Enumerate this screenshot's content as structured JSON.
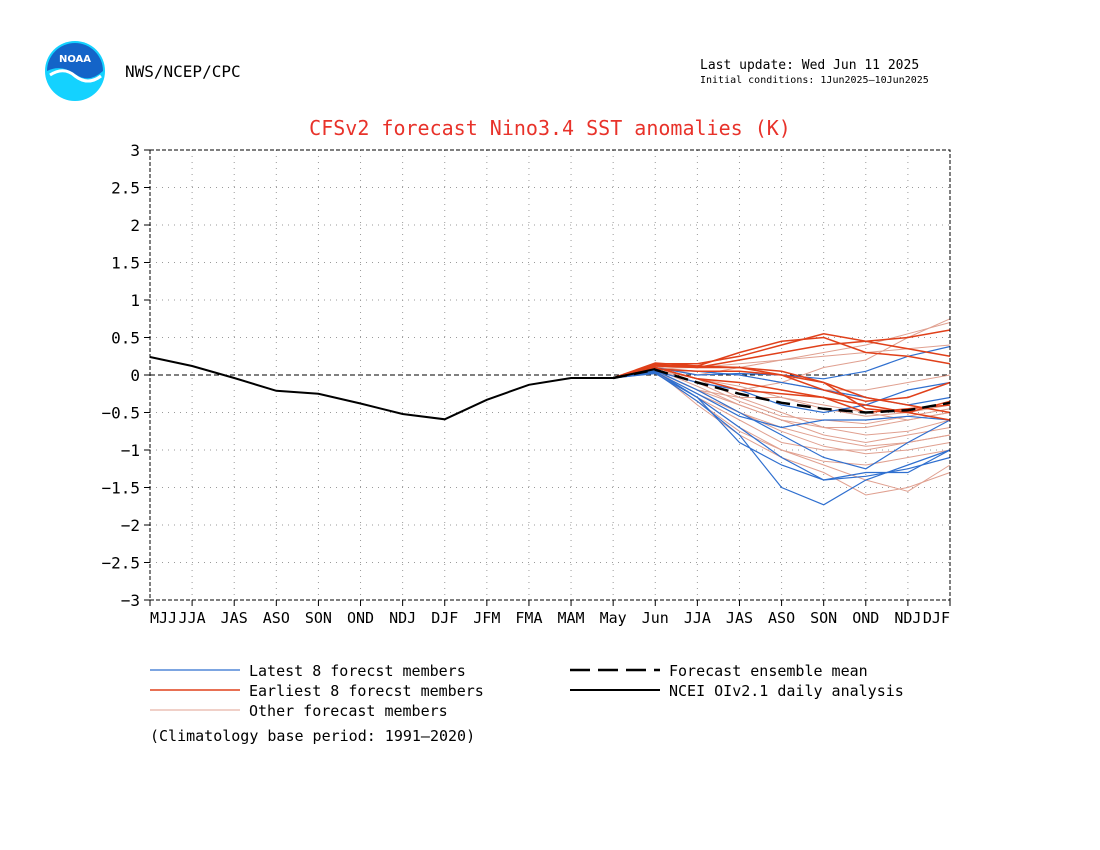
{
  "header": {
    "agency": "NWS/NCEP/CPC",
    "logo_text": "NOAA",
    "last_update": "Last update: Wed Jun 11 2025",
    "initial_conditions": "Initial conditions: 1Jun2025–10Jun2025"
  },
  "colors": {
    "title": "#e8322a",
    "latest": "#2f6fcf",
    "earliest": "#e0401a",
    "other": "#e0a090",
    "observed": "#000000",
    "mean": "#000000",
    "logo_blue": "#1464c8",
    "logo_cyan": "#14d2ff"
  },
  "chart_data": {
    "type": "line",
    "title": "CFSv2 forecast Nino3.4 SST anomalies (K)",
    "categories": [
      "MJJ",
      "JJA",
      "JAS",
      "ASO",
      "SON",
      "OND",
      "NDJ",
      "DJF",
      "JFM",
      "FMA",
      "MAM",
      "May",
      "Jun",
      "JJA",
      "JAS",
      "ASO",
      "SON",
      "OND",
      "NDJ",
      "DJF"
    ],
    "ylim": [
      -3,
      3
    ],
    "yticks": [
      "3",
      "2.5",
      "2",
      "1.5",
      "1",
      "0.5",
      "0",
      "−0.5",
      "−1",
      "−1.5",
      "−2",
      "−2.5",
      "−3"
    ],
    "ytick_values": [
      3,
      2.5,
      2,
      1.5,
      1,
      0.5,
      0,
      -0.5,
      -1,
      -1.5,
      -2,
      -2.5,
      -3
    ],
    "grid": "dotted",
    "zero_line": "dashed",
    "forecast_start_index": 11,
    "observed": {
      "name": "NCEI OIv2.1 daily analysis",
      "values": [
        0.24,
        0.12,
        -0.04,
        -0.21,
        -0.25,
        -0.38,
        -0.52,
        -0.59,
        -0.33,
        -0.13,
        -0.04,
        -0.04,
        0.08
      ]
    },
    "ensemble_mean": {
      "name": "Forecast ensemble mean",
      "values": [
        -0.04,
        0.07,
        -0.1,
        -0.25,
        -0.37,
        -0.45,
        -0.5,
        -0.47,
        -0.37
      ]
    },
    "members": {
      "latest": [
        [
          -0.04,
          0.05,
          -0.3,
          -0.7,
          -1.1,
          -1.4,
          -1.3,
          -1.3,
          -1.0
        ],
        [
          -0.04,
          0.03,
          -0.35,
          -0.8,
          -1.5,
          -1.73,
          -1.4,
          -1.2,
          -1.0
        ],
        [
          -0.04,
          0.1,
          0.0,
          0.02,
          0.0,
          -0.05,
          0.05,
          0.25,
          0.38
        ],
        [
          -0.04,
          0.05,
          -0.1,
          -0.2,
          -0.4,
          -0.5,
          -0.4,
          -0.2,
          -0.1
        ],
        [
          -0.04,
          0.06,
          -0.2,
          -0.5,
          -0.8,
          -1.1,
          -1.25,
          -0.9,
          -0.6
        ],
        [
          -0.04,
          0.04,
          -0.25,
          -0.55,
          -0.7,
          -0.6,
          -0.6,
          -0.55,
          -0.6
        ],
        [
          -0.04,
          0.08,
          0.05,
          0.0,
          -0.1,
          -0.2,
          -0.3,
          -0.4,
          -0.3
        ],
        [
          -0.04,
          0.02,
          -0.3,
          -0.9,
          -1.2,
          -1.4,
          -1.35,
          -1.25,
          -1.1
        ]
      ],
      "earliest": [
        [
          -0.04,
          0.15,
          0.15,
          0.25,
          0.4,
          0.55,
          0.45,
          0.35,
          0.25
        ],
        [
          -0.04,
          0.16,
          0.12,
          0.3,
          0.45,
          0.5,
          0.3,
          0.25,
          0.15
        ],
        [
          -0.04,
          0.12,
          0.1,
          0.2,
          0.3,
          0.4,
          0.45,
          0.5,
          0.6
        ],
        [
          -0.04,
          0.1,
          -0.05,
          -0.2,
          -0.25,
          -0.3,
          -0.5,
          -0.45,
          -0.4
        ],
        [
          -0.04,
          0.08,
          0.05,
          0.05,
          0.0,
          -0.1,
          -0.3,
          -0.4,
          -0.5
        ],
        [
          -0.04,
          0.14,
          0.1,
          0.1,
          0.0,
          -0.2,
          -0.35,
          -0.3,
          -0.1
        ],
        [
          -0.04,
          0.1,
          -0.05,
          -0.1,
          -0.2,
          -0.3,
          -0.4,
          -0.5,
          -0.6
        ],
        [
          -0.04,
          0.13,
          0.12,
          0.1,
          0.05,
          -0.1,
          -0.45,
          -0.5,
          -0.35
        ]
      ],
      "other": [
        [
          -0.04,
          0.05,
          -0.2,
          -0.4,
          -0.6,
          -0.8,
          -0.9,
          -0.8,
          -0.7
        ],
        [
          -0.04,
          0.03,
          -0.3,
          -0.6,
          -0.9,
          -1.0,
          -1.0,
          -0.9,
          -0.8
        ],
        [
          -0.04,
          0.1,
          -0.05,
          -0.3,
          -0.5,
          -0.7,
          -0.7,
          -0.6,
          -0.5
        ],
        [
          -0.04,
          0.07,
          -0.1,
          -0.2,
          -0.1,
          0.1,
          0.2,
          0.5,
          0.75
        ],
        [
          -0.04,
          0.12,
          0.0,
          0.1,
          0.2,
          0.3,
          0.4,
          0.55,
          0.7
        ],
        [
          -0.04,
          0.06,
          -0.4,
          -0.8,
          -1.1,
          -1.3,
          -1.6,
          -1.5,
          -1.3
        ],
        [
          -0.04,
          0.02,
          -0.3,
          -0.7,
          -1.0,
          -1.2,
          -1.4,
          -1.55,
          -1.2
        ],
        [
          -0.04,
          0.05,
          -0.2,
          -0.3,
          -0.3,
          -0.4,
          -0.5,
          -0.6,
          -0.5
        ],
        [
          -0.04,
          0.08,
          -0.15,
          -0.4,
          -0.6,
          -0.7,
          -0.8,
          -0.75,
          -0.6
        ],
        [
          -0.04,
          0.1,
          0.05,
          0.0,
          -0.1,
          -0.2,
          -0.2,
          -0.1,
          0.0
        ],
        [
          -0.04,
          0.04,
          -0.25,
          -0.5,
          -0.75,
          -0.95,
          -1.05,
          -1.0,
          -0.9
        ],
        [
          -0.04,
          0.06,
          -0.1,
          -0.35,
          -0.55,
          -0.6,
          -0.65,
          -0.55,
          -0.45
        ],
        [
          -0.04,
          0.09,
          0.1,
          0.15,
          0.2,
          0.25,
          0.3,
          0.35,
          0.4
        ],
        [
          -0.04,
          0.03,
          -0.35,
          -0.75,
          -1.0,
          -1.15,
          -1.2,
          -1.1,
          -1.0
        ],
        [
          -0.04,
          0.07,
          -0.05,
          -0.15,
          -0.3,
          -0.45,
          -0.55,
          -0.5,
          -0.4
        ],
        [
          -0.04,
          0.05,
          -0.2,
          -0.5,
          -0.7,
          -0.85,
          -0.95,
          -0.9,
          -0.8
        ]
      ]
    },
    "legend": [
      {
        "label": "Latest 8 forecst members",
        "style": "latest"
      },
      {
        "label": "Earliest 8 forecst members",
        "style": "earliest"
      },
      {
        "label": "Other forecast members",
        "style": "other"
      },
      {
        "label": "Forecast ensemble mean",
        "style": "mean"
      },
      {
        "label": "NCEI OIv2.1 daily analysis",
        "style": "observed"
      }
    ],
    "footnote": "(Climatology base period: 1991–2020)"
  }
}
